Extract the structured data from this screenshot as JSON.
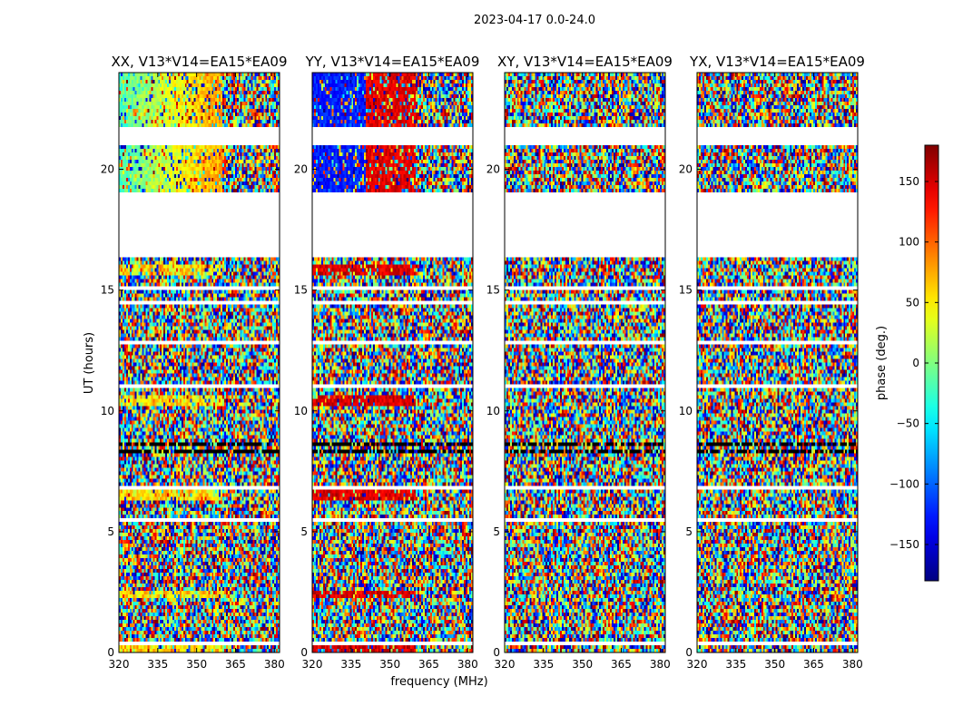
{
  "chart_data": {
    "type": "heatmap",
    "title": "2023-04-17 0.0-24.0",
    "xlabel": "frequency (MHz)",
    "ylabel": "UT (hours)",
    "xlim": [
      320,
      382
    ],
    "ylim": [
      0,
      24
    ],
    "xticks": [
      320,
      335,
      350,
      365,
      380
    ],
    "yticks": [
      0,
      5,
      10,
      15,
      20
    ],
    "panels": [
      {
        "title": "XX, V13*V14=EA15*EA09",
        "style": "parallel",
        "base": "green"
      },
      {
        "title": "YY, V13*V14=EA15*EA09",
        "style": "parallel",
        "base": "blue"
      },
      {
        "title": "XY, V13*V14=EA15*EA09",
        "style": "cross",
        "base": "noise"
      },
      {
        "title": "YX, V13*V14=EA15*EA09",
        "style": "cross",
        "base": "noise"
      }
    ],
    "blank_ranges_hours": [
      [
        16.4,
        19.0
      ],
      [
        21.0,
        21.7
      ]
    ],
    "colorbar": {
      "label": "phase (deg.)",
      "range": [
        -180,
        180
      ],
      "ticks": [
        -150,
        -100,
        -50,
        0,
        50,
        100,
        150
      ],
      "tick_labels": [
        "−150",
        "−100",
        "−50",
        "0",
        "50",
        "100",
        "150"
      ],
      "colormap": "jet"
    }
  }
}
